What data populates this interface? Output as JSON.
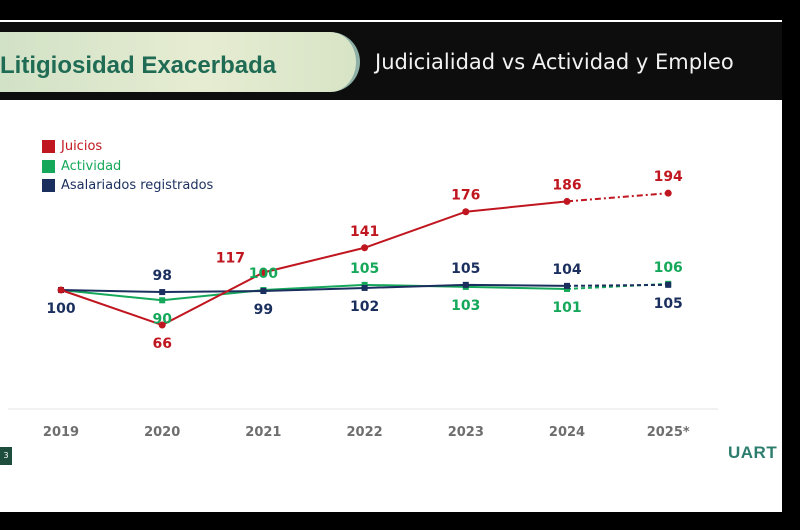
{
  "header": {
    "title": "Litigiosidad Exacerbada",
    "subtitle": "Judicialidad vs Actividad y Empleo"
  },
  "footer": {
    "page_number": "3",
    "brand": "UART"
  },
  "colors": {
    "juicios": "#c0161f",
    "actividad": "#16a85a",
    "asalariados": "#1b2f5e"
  },
  "chart_data": {
    "type": "line",
    "categories": [
      "2019",
      "2020",
      "2021",
      "2022",
      "2023",
      "2024",
      "2025*"
    ],
    "projected_from_index": 5,
    "legend_position": "top-left",
    "grid": false,
    "series": [
      {
        "key": "juicios",
        "name": "Juicios",
        "values": [
          100,
          66,
          117,
          141,
          176,
          186,
          194
        ]
      },
      {
        "key": "actividad",
        "name": "Actividad",
        "values": [
          100,
          90,
          100,
          105,
          103,
          101,
          106
        ]
      },
      {
        "key": "asalariados",
        "name": "Asalariados registrados",
        "values": [
          100,
          98,
          99,
          102,
          105,
          104,
          105
        ]
      }
    ],
    "data_labels": [
      {
        "text": "100",
        "series": "asalariados",
        "index": 0,
        "pos": "below"
      },
      {
        "text": "66",
        "series": "juicios",
        "index": 1,
        "pos": "below"
      },
      {
        "text": "98",
        "series": "asalariados",
        "index": 1,
        "pos": "above"
      },
      {
        "text": "90",
        "series": "actividad",
        "index": 1,
        "pos": "below"
      },
      {
        "text": "117",
        "series": "juicios",
        "index": 2,
        "pos": "above-left"
      },
      {
        "text": "100",
        "series": "actividad",
        "index": 2,
        "pos": "above"
      },
      {
        "text": "99",
        "series": "asalariados",
        "index": 2,
        "pos": "below"
      },
      {
        "text": "141",
        "series": "juicios",
        "index": 3,
        "pos": "above"
      },
      {
        "text": "105",
        "series": "actividad",
        "index": 3,
        "pos": "above"
      },
      {
        "text": "102",
        "series": "asalariados",
        "index": 3,
        "pos": "below"
      },
      {
        "text": "176",
        "series": "juicios",
        "index": 4,
        "pos": "above"
      },
      {
        "text": "105",
        "series": "asalariados",
        "index": 4,
        "pos": "above"
      },
      {
        "text": "103",
        "series": "actividad",
        "index": 4,
        "pos": "below"
      },
      {
        "text": "186",
        "series": "juicios",
        "index": 5,
        "pos": "above"
      },
      {
        "text": "104",
        "series": "asalariados",
        "index": 5,
        "pos": "above"
      },
      {
        "text": "101",
        "series": "actividad",
        "index": 5,
        "pos": "below"
      },
      {
        "text": "194",
        "series": "juicios",
        "index": 6,
        "pos": "above"
      },
      {
        "text": "106",
        "series": "actividad",
        "index": 6,
        "pos": "above"
      },
      {
        "text": "105",
        "series": "asalariados",
        "index": 6,
        "pos": "below"
      }
    ]
  }
}
